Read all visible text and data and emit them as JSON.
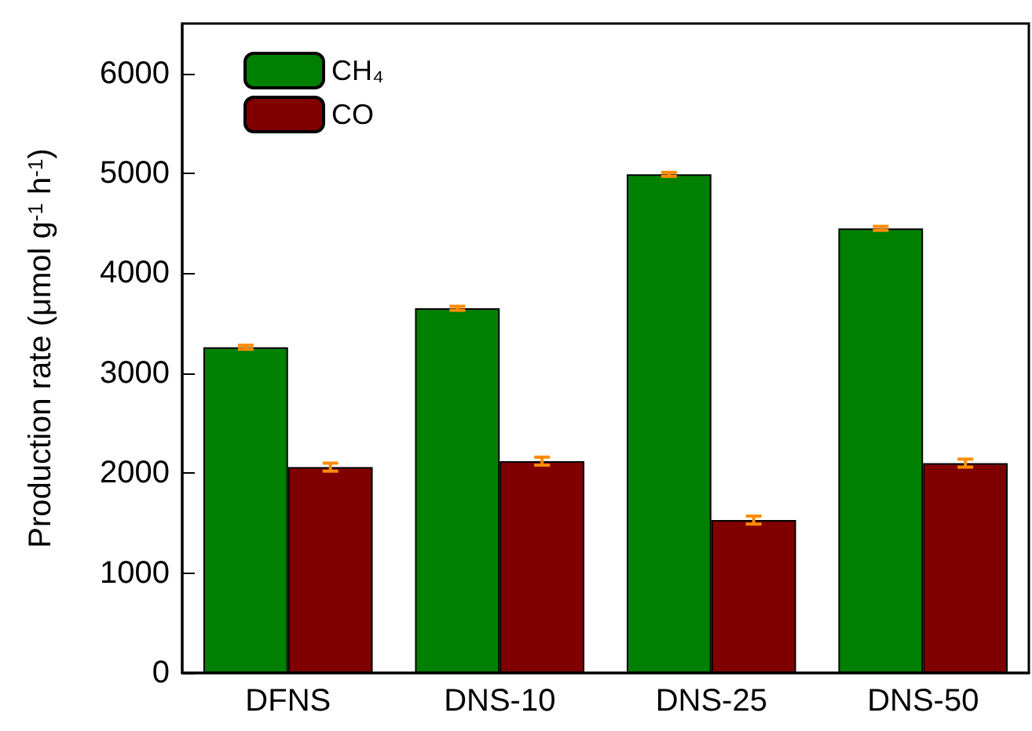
{
  "chart_data": {
    "type": "bar",
    "ylabel": "Production rate (μmol g$^{-1}$ h$^{-1}$)",
    "categories": [
      "DFNS",
      "DNS-10",
      "DNS-25",
      "DNS-50"
    ],
    "series": [
      {
        "name": "CH₄",
        "color": "#008000",
        "values": [
          3260,
          3650,
          4990,
          4450
        ],
        "errors": [
          20,
          20,
          20,
          20
        ]
      },
      {
        "name": "CO",
        "color": "#800000",
        "values": [
          2060,
          2120,
          1530,
          2100
        ],
        "errors": [
          40,
          40,
          40,
          40
        ]
      }
    ],
    "ylim": [
      0,
      6500
    ],
    "yticks": [
      0,
      1000,
      2000,
      3000,
      4000,
      5000,
      6000
    ],
    "grid": false,
    "legend": "top left"
  }
}
